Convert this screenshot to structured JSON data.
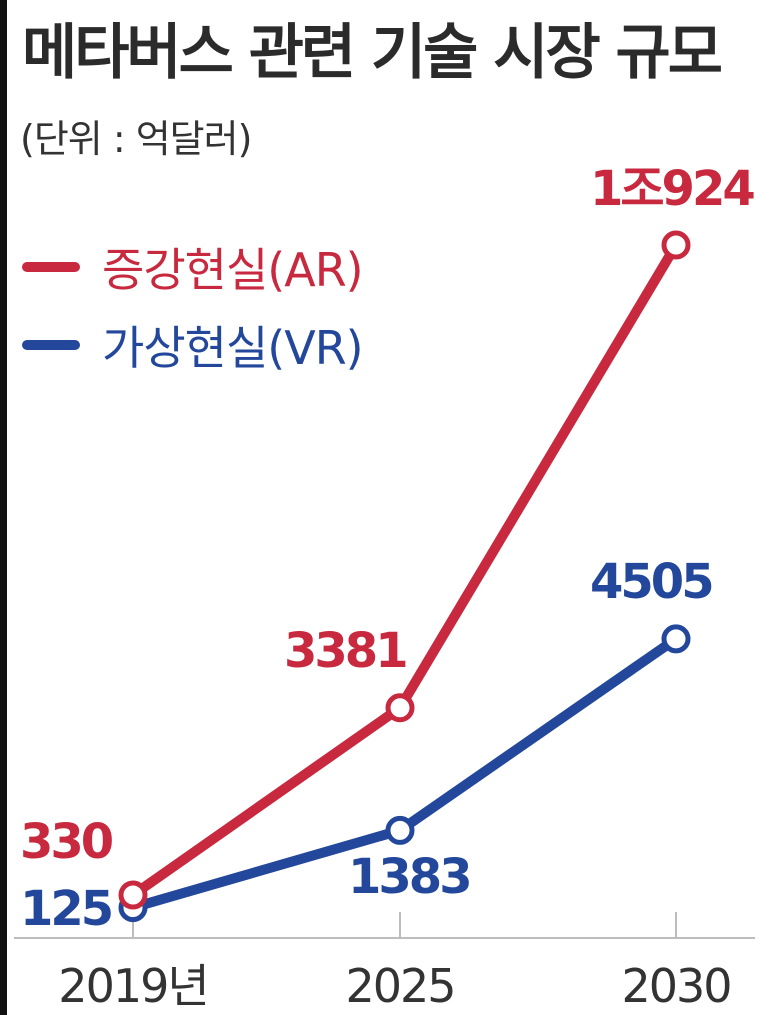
{
  "title": "메타버스 관련 기술 시장 규모",
  "unit": "(단위 : 억달러)",
  "colors": {
    "ar": "#c8293e",
    "vr": "#23479a"
  },
  "chart_data": {
    "type": "line",
    "categories": [
      "2019년",
      "2025",
      "2030"
    ],
    "series": [
      {
        "name": "증강현실(AR)",
        "values": [
          330,
          3381,
          10924
        ],
        "labels": [
          "330",
          "3381",
          "1조924"
        ]
      },
      {
        "name": "가상현실(VR)",
        "values": [
          125,
          1383,
          4505
        ],
        "labels": [
          "125",
          "1383",
          "4505"
        ]
      }
    ],
    "legend_position": "top-left",
    "grid": false
  }
}
